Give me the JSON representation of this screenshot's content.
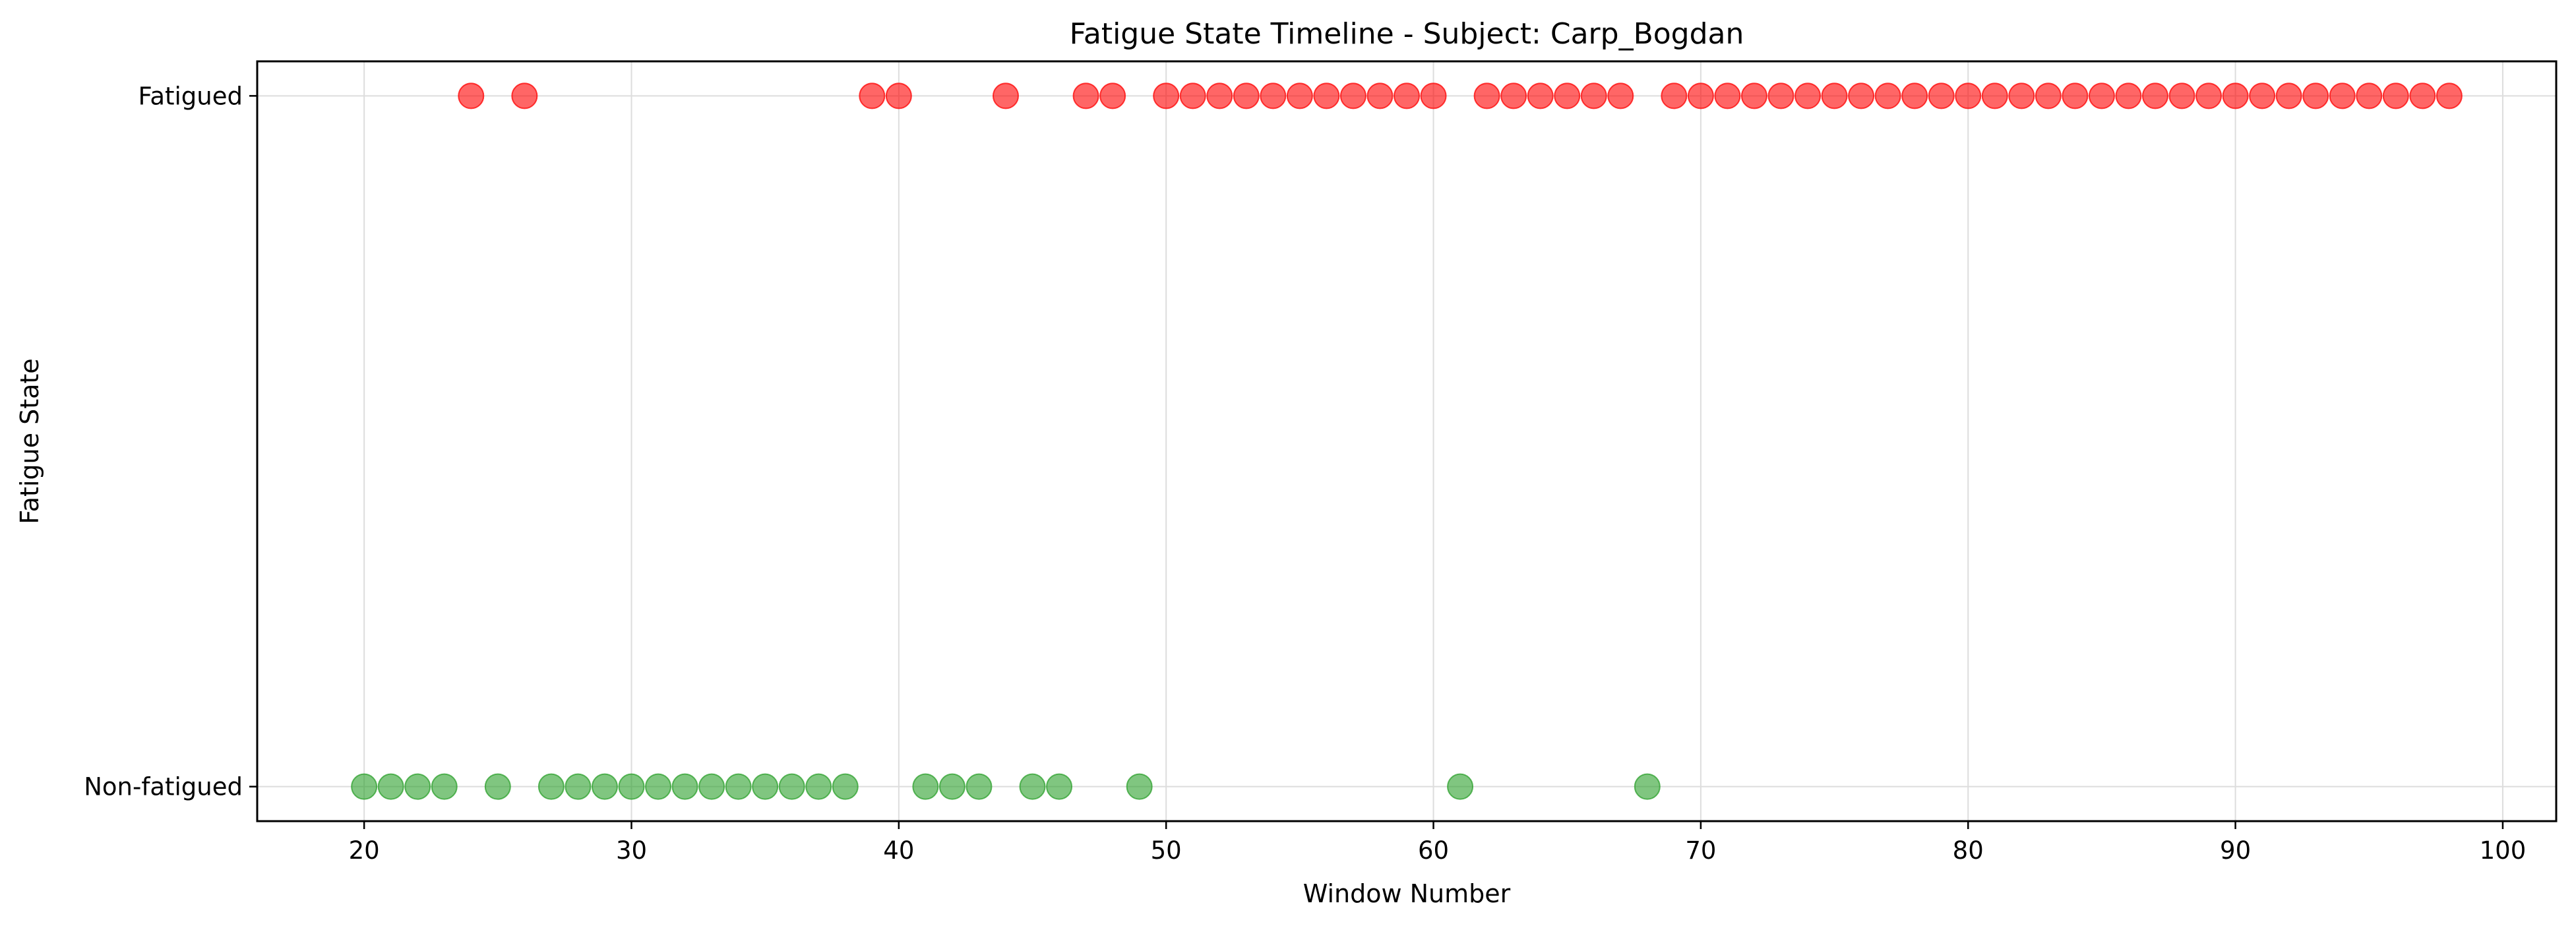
{
  "chart_data": {
    "type": "scatter",
    "title": "Fatigue State Timeline - Subject: Carp_Bogdan",
    "xlabel": "Window Number",
    "ylabel": "Fatigue State",
    "xlim": [
      16,
      102
    ],
    "ylim": [
      -0.05,
      1.05
    ],
    "x_ticks": [
      20,
      30,
      40,
      50,
      60,
      70,
      80,
      90,
      100
    ],
    "y_ticks": [
      {
        "value": 0,
        "label": "Non-fatigued"
      },
      {
        "value": 1,
        "label": "Fatigued"
      }
    ],
    "grid": true,
    "series": [
      {
        "state": "Non-fatigued",
        "y": 0,
        "color": "#2ca02c",
        "x": [
          20,
          21,
          22,
          23,
          25,
          27,
          28,
          29,
          30,
          31,
          32,
          33,
          34,
          35,
          36,
          37,
          38,
          41,
          42,
          43,
          45,
          46,
          49,
          61,
          68
        ]
      },
      {
        "state": "Fatigued",
        "y": 1,
        "color": "#ff0000",
        "x": [
          24,
          26,
          39,
          40,
          44,
          47,
          48,
          50,
          51,
          52,
          53,
          54,
          55,
          56,
          57,
          58,
          59,
          60,
          62,
          63,
          64,
          65,
          66,
          67,
          69,
          70,
          71,
          72,
          73,
          74,
          75,
          76,
          77,
          78,
          79,
          80,
          81,
          82,
          83,
          84,
          85,
          86,
          87,
          88,
          89,
          90,
          91,
          92,
          93,
          94,
          95,
          96,
          97,
          98
        ]
      }
    ]
  }
}
